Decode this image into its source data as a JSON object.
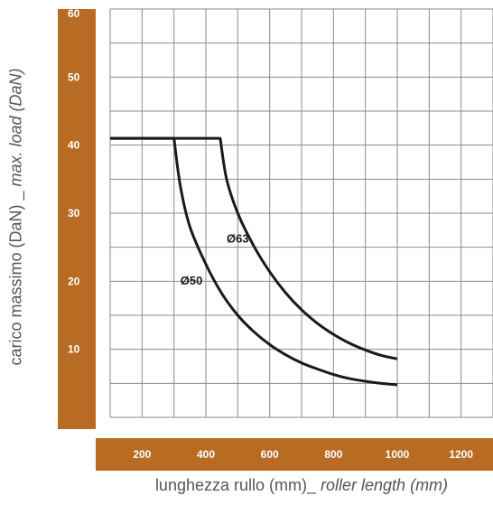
{
  "colors": {
    "axis_band": "#b86b22",
    "tick_text": "#ffffff",
    "grid": "#8a8a8a",
    "curve": "#1a1a1a",
    "axis_title": "#555555"
  },
  "chart_data": {
    "type": "line",
    "title": "",
    "xlabel": {
      "plain": "lunghezza rullo (mm)_ ",
      "italic": "roller length (mm)"
    },
    "ylabel": {
      "plain": "carico massimo (DaN) _ ",
      "italic": "max. load (DaN)"
    },
    "xlim": [
      100,
      1300
    ],
    "ylim": [
      0,
      60
    ],
    "x_ticks": [
      200,
      400,
      600,
      800,
      1000,
      1200
    ],
    "y_ticks": [
      10,
      20,
      30,
      40,
      50,
      60
    ],
    "grid": true,
    "series": [
      {
        "name": "Ø50",
        "label_at": [
          355,
          19.5
        ],
        "points": [
          [
            100,
            41
          ],
          [
            300,
            41
          ],
          [
            320,
            34
          ],
          [
            350,
            28
          ],
          [
            400,
            22.5
          ],
          [
            450,
            18.2
          ],
          [
            500,
            15
          ],
          [
            550,
            12.6
          ],
          [
            600,
            10.7
          ],
          [
            650,
            9.2
          ],
          [
            700,
            8
          ],
          [
            750,
            7.1
          ],
          [
            800,
            6.3
          ],
          [
            850,
            5.7
          ],
          [
            900,
            5.3
          ],
          [
            950,
            5
          ],
          [
            1000,
            4.8
          ]
        ]
      },
      {
        "name": "Ø63",
        "label_at": [
          500,
          25.7
        ],
        "points": [
          [
            100,
            41
          ],
          [
            445,
            41
          ],
          [
            465,
            35
          ],
          [
            500,
            30
          ],
          [
            550,
            25.2
          ],
          [
            600,
            21.4
          ],
          [
            650,
            18.3
          ],
          [
            700,
            15.8
          ],
          [
            750,
            13.8
          ],
          [
            800,
            12.2
          ],
          [
            850,
            10.9
          ],
          [
            900,
            9.9
          ],
          [
            950,
            9.1
          ],
          [
            1000,
            8.6
          ]
        ]
      }
    ]
  }
}
